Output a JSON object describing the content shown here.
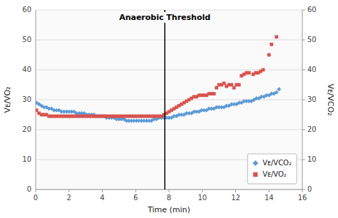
{
  "chart_data": {
    "type": "scatter",
    "annotations": [
      {
        "x": 7.75,
        "label": "Anaerobic Threshold"
      }
    ],
    "xlabel": "Time (min)",
    "ylabel": "Vᴇ/VO₂",
    "y2label": "Vᴇ/VCO₂",
    "xlim": [
      0,
      16
    ],
    "ylim": [
      0,
      60
    ],
    "y2lim": [
      0,
      60
    ],
    "xticks": [
      0,
      2,
      4,
      6,
      8,
      10,
      12,
      14,
      16
    ],
    "yticks": [
      0,
      10,
      20,
      30,
      40,
      50,
      60
    ],
    "y2ticks": [
      0,
      10,
      20,
      30,
      40,
      50,
      60
    ],
    "grid": true,
    "legend": "lower right",
    "series": [
      {
        "name": "Vᴇ/VCO₂",
        "color": "#5b9bd5",
        "marker": "diamond",
        "x": [
          0.05,
          0.2,
          0.35,
          0.5,
          0.65,
          0.8,
          0.95,
          1.1,
          1.25,
          1.4,
          1.55,
          1.7,
          1.85,
          2.0,
          2.15,
          2.3,
          2.45,
          2.6,
          2.75,
          2.9,
          3.05,
          3.2,
          3.35,
          3.5,
          3.65,
          3.8,
          3.95,
          4.1,
          4.25,
          4.4,
          4.55,
          4.7,
          4.85,
          5.0,
          5.15,
          5.3,
          5.45,
          5.6,
          5.75,
          5.9,
          6.05,
          6.2,
          6.35,
          6.5,
          6.65,
          6.8,
          6.95,
          7.1,
          7.25,
          7.4,
          7.55,
          7.7,
          7.85,
          8.0,
          8.15,
          8.3,
          8.45,
          8.6,
          8.75,
          8.9,
          9.05,
          9.2,
          9.35,
          9.5,
          9.65,
          9.8,
          9.95,
          10.1,
          10.25,
          10.4,
          10.55,
          10.7,
          10.85,
          11.0,
          11.15,
          11.3,
          11.45,
          11.6,
          11.75,
          11.9,
          12.05,
          12.2,
          12.35,
          12.5,
          12.65,
          12.8,
          12.95,
          13.1,
          13.25,
          13.4,
          13.55,
          13.7,
          13.85,
          14.0,
          14.15,
          14.3,
          14.45,
          14.6
        ],
        "values": [
          29,
          28.5,
          28,
          27.5,
          27.5,
          27,
          27,
          26.5,
          26.5,
          26.5,
          26,
          26,
          26,
          26,
          26,
          26,
          25.5,
          25.5,
          25.5,
          25.5,
          25,
          25,
          25,
          25,
          24.5,
          24.5,
          24.5,
          24.5,
          24,
          24,
          24,
          24,
          23.5,
          23.5,
          23.5,
          23.5,
          23,
          23,
          23,
          23,
          23,
          23,
          23,
          23,
          23,
          23,
          23,
          23.5,
          23.5,
          24,
          24,
          24,
          24,
          24,
          24,
          24.5,
          24.5,
          25,
          25,
          25,
          25.5,
          25.5,
          25.5,
          26,
          26,
          26,
          26.5,
          26.5,
          26.5,
          27,
          27,
          27,
          27.5,
          27.5,
          27.5,
          27.5,
          28,
          28,
          28.5,
          28.5,
          28.5,
          29,
          29,
          29.5,
          29.5,
          29.5,
          29.5,
          30,
          30.5,
          30.5,
          31,
          31,
          31.5,
          31.5,
          32,
          32,
          32.5,
          33.5
        ]
      },
      {
        "name": "Vᴇ/VO₂",
        "color": "#d9534f",
        "marker": "square",
        "x": [
          0.05,
          0.2,
          0.35,
          0.5,
          0.65,
          0.8,
          0.95,
          1.1,
          1.25,
          1.4,
          1.55,
          1.7,
          1.85,
          2.0,
          2.15,
          2.3,
          2.45,
          2.6,
          2.75,
          2.9,
          3.05,
          3.2,
          3.35,
          3.5,
          3.65,
          3.8,
          3.95,
          4.1,
          4.25,
          4.4,
          4.55,
          4.7,
          4.85,
          5.0,
          5.15,
          5.3,
          5.45,
          5.6,
          5.75,
          5.9,
          6.05,
          6.2,
          6.35,
          6.5,
          6.65,
          6.8,
          6.95,
          7.1,
          7.25,
          7.4,
          7.55,
          7.7,
          7.85,
          8.0,
          8.15,
          8.3,
          8.45,
          8.6,
          8.75,
          8.9,
          9.05,
          9.2,
          9.35,
          9.5,
          9.65,
          9.8,
          9.95,
          10.1,
          10.25,
          10.4,
          10.55,
          10.7,
          10.85,
          11.0,
          11.15,
          11.3,
          11.45,
          11.6,
          11.75,
          11.9,
          12.05,
          12.2,
          12.35,
          12.5,
          12.65,
          12.8,
          13.05,
          13.2,
          13.35,
          13.5,
          13.65,
          14.0,
          14.15,
          14.45
        ],
        "values": [
          26.5,
          25.5,
          25,
          25,
          25,
          24.5,
          24.5,
          24.5,
          24.5,
          24.5,
          24.5,
          24.5,
          24.5,
          24.5,
          24.5,
          24.5,
          24.5,
          24.5,
          24.5,
          24.5,
          24.5,
          24.5,
          24.5,
          24.5,
          24.5,
          24.5,
          24.5,
          24.5,
          24.5,
          24.5,
          24.5,
          24.5,
          24.5,
          24.5,
          24.5,
          24.5,
          24.5,
          24.5,
          24.5,
          24.5,
          24.5,
          24.5,
          24.5,
          24.5,
          24.5,
          24.5,
          24.5,
          24.5,
          24.5,
          24.5,
          24.5,
          25,
          25.5,
          26,
          26.5,
          27,
          27.5,
          28,
          28.5,
          29,
          29.5,
          30,
          30.5,
          31,
          31,
          31.5,
          31.5,
          31.5,
          31.5,
          32,
          32,
          32,
          34,
          35,
          35,
          35.5,
          34.5,
          35,
          35,
          34,
          35,
          35,
          38,
          38.5,
          39,
          39,
          38.5,
          39,
          39,
          39.5,
          40,
          45,
          48.5,
          51
        ]
      }
    ]
  }
}
